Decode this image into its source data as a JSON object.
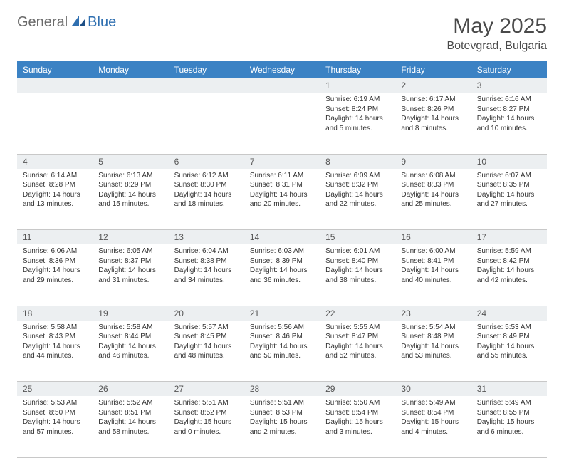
{
  "brand": {
    "general": "General",
    "blue": "Blue"
  },
  "title": "May 2025",
  "location": "Botevgrad, Bulgaria",
  "colors": {
    "header_bg": "#3b82c4",
    "header_text": "#ffffff",
    "daynum_bg": "#eceff1",
    "border": "#c8c8c8",
    "text": "#333333",
    "title_text": "#4a4a4a",
    "logo_gray": "#6a6a6a",
    "logo_blue": "#2f6fb0"
  },
  "weekdays": [
    "Sunday",
    "Monday",
    "Tuesday",
    "Wednesday",
    "Thursday",
    "Friday",
    "Saturday"
  ],
  "weeks": [
    [
      null,
      null,
      null,
      null,
      {
        "n": "1",
        "sr": "Sunrise: 6:19 AM",
        "ss": "Sunset: 8:24 PM",
        "dl": "Daylight: 14 hours and 5 minutes."
      },
      {
        "n": "2",
        "sr": "Sunrise: 6:17 AM",
        "ss": "Sunset: 8:26 PM",
        "dl": "Daylight: 14 hours and 8 minutes."
      },
      {
        "n": "3",
        "sr": "Sunrise: 6:16 AM",
        "ss": "Sunset: 8:27 PM",
        "dl": "Daylight: 14 hours and 10 minutes."
      }
    ],
    [
      {
        "n": "4",
        "sr": "Sunrise: 6:14 AM",
        "ss": "Sunset: 8:28 PM",
        "dl": "Daylight: 14 hours and 13 minutes."
      },
      {
        "n": "5",
        "sr": "Sunrise: 6:13 AM",
        "ss": "Sunset: 8:29 PM",
        "dl": "Daylight: 14 hours and 15 minutes."
      },
      {
        "n": "6",
        "sr": "Sunrise: 6:12 AM",
        "ss": "Sunset: 8:30 PM",
        "dl": "Daylight: 14 hours and 18 minutes."
      },
      {
        "n": "7",
        "sr": "Sunrise: 6:11 AM",
        "ss": "Sunset: 8:31 PM",
        "dl": "Daylight: 14 hours and 20 minutes."
      },
      {
        "n": "8",
        "sr": "Sunrise: 6:09 AM",
        "ss": "Sunset: 8:32 PM",
        "dl": "Daylight: 14 hours and 22 minutes."
      },
      {
        "n": "9",
        "sr": "Sunrise: 6:08 AM",
        "ss": "Sunset: 8:33 PM",
        "dl": "Daylight: 14 hours and 25 minutes."
      },
      {
        "n": "10",
        "sr": "Sunrise: 6:07 AM",
        "ss": "Sunset: 8:35 PM",
        "dl": "Daylight: 14 hours and 27 minutes."
      }
    ],
    [
      {
        "n": "11",
        "sr": "Sunrise: 6:06 AM",
        "ss": "Sunset: 8:36 PM",
        "dl": "Daylight: 14 hours and 29 minutes."
      },
      {
        "n": "12",
        "sr": "Sunrise: 6:05 AM",
        "ss": "Sunset: 8:37 PM",
        "dl": "Daylight: 14 hours and 31 minutes."
      },
      {
        "n": "13",
        "sr": "Sunrise: 6:04 AM",
        "ss": "Sunset: 8:38 PM",
        "dl": "Daylight: 14 hours and 34 minutes."
      },
      {
        "n": "14",
        "sr": "Sunrise: 6:03 AM",
        "ss": "Sunset: 8:39 PM",
        "dl": "Daylight: 14 hours and 36 minutes."
      },
      {
        "n": "15",
        "sr": "Sunrise: 6:01 AM",
        "ss": "Sunset: 8:40 PM",
        "dl": "Daylight: 14 hours and 38 minutes."
      },
      {
        "n": "16",
        "sr": "Sunrise: 6:00 AM",
        "ss": "Sunset: 8:41 PM",
        "dl": "Daylight: 14 hours and 40 minutes."
      },
      {
        "n": "17",
        "sr": "Sunrise: 5:59 AM",
        "ss": "Sunset: 8:42 PM",
        "dl": "Daylight: 14 hours and 42 minutes."
      }
    ],
    [
      {
        "n": "18",
        "sr": "Sunrise: 5:58 AM",
        "ss": "Sunset: 8:43 PM",
        "dl": "Daylight: 14 hours and 44 minutes."
      },
      {
        "n": "19",
        "sr": "Sunrise: 5:58 AM",
        "ss": "Sunset: 8:44 PM",
        "dl": "Daylight: 14 hours and 46 minutes."
      },
      {
        "n": "20",
        "sr": "Sunrise: 5:57 AM",
        "ss": "Sunset: 8:45 PM",
        "dl": "Daylight: 14 hours and 48 minutes."
      },
      {
        "n": "21",
        "sr": "Sunrise: 5:56 AM",
        "ss": "Sunset: 8:46 PM",
        "dl": "Daylight: 14 hours and 50 minutes."
      },
      {
        "n": "22",
        "sr": "Sunrise: 5:55 AM",
        "ss": "Sunset: 8:47 PM",
        "dl": "Daylight: 14 hours and 52 minutes."
      },
      {
        "n": "23",
        "sr": "Sunrise: 5:54 AM",
        "ss": "Sunset: 8:48 PM",
        "dl": "Daylight: 14 hours and 53 minutes."
      },
      {
        "n": "24",
        "sr": "Sunrise: 5:53 AM",
        "ss": "Sunset: 8:49 PM",
        "dl": "Daylight: 14 hours and 55 minutes."
      }
    ],
    [
      {
        "n": "25",
        "sr": "Sunrise: 5:53 AM",
        "ss": "Sunset: 8:50 PM",
        "dl": "Daylight: 14 hours and 57 minutes."
      },
      {
        "n": "26",
        "sr": "Sunrise: 5:52 AM",
        "ss": "Sunset: 8:51 PM",
        "dl": "Daylight: 14 hours and 58 minutes."
      },
      {
        "n": "27",
        "sr": "Sunrise: 5:51 AM",
        "ss": "Sunset: 8:52 PM",
        "dl": "Daylight: 15 hours and 0 minutes."
      },
      {
        "n": "28",
        "sr": "Sunrise: 5:51 AM",
        "ss": "Sunset: 8:53 PM",
        "dl": "Daylight: 15 hours and 2 minutes."
      },
      {
        "n": "29",
        "sr": "Sunrise: 5:50 AM",
        "ss": "Sunset: 8:54 PM",
        "dl": "Daylight: 15 hours and 3 minutes."
      },
      {
        "n": "30",
        "sr": "Sunrise: 5:49 AM",
        "ss": "Sunset: 8:54 PM",
        "dl": "Daylight: 15 hours and 4 minutes."
      },
      {
        "n": "31",
        "sr": "Sunrise: 5:49 AM",
        "ss": "Sunset: 8:55 PM",
        "dl": "Daylight: 15 hours and 6 minutes."
      }
    ]
  ]
}
